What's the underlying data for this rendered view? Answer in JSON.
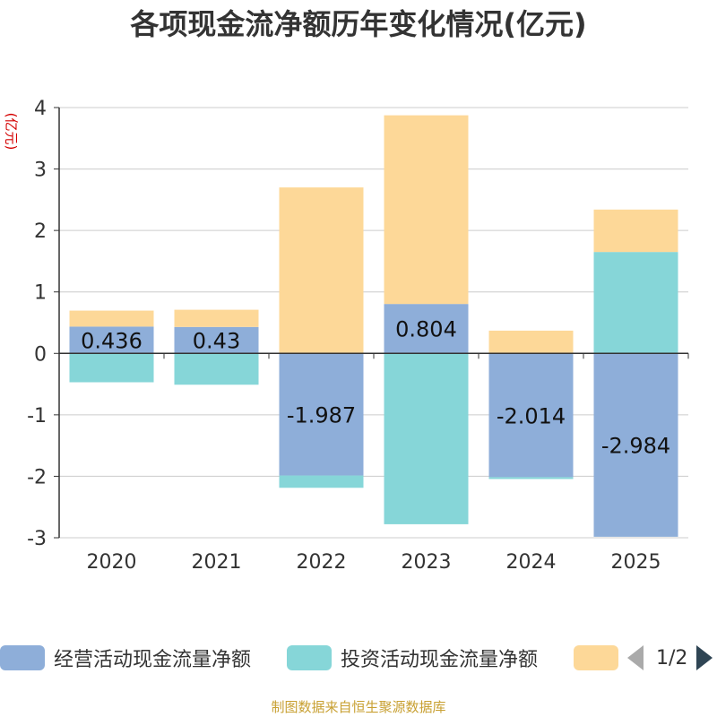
{
  "title": "各项现金流净额历年变化情况(亿元)",
  "unit_label": "(亿元)",
  "footer": "制图数据来自恒生聚源数据库",
  "pager": "1/2",
  "chart_data": {
    "type": "bar",
    "stacked": true,
    "title": "各项现金流净额历年变化情况(亿元)",
    "ylabel": "(亿元)",
    "xlabel": "",
    "categories": [
      "2020",
      "2021",
      "2022",
      "2023",
      "2024",
      "2025"
    ],
    "ylim": [
      -3,
      4
    ],
    "yticks": [
      4,
      3,
      2,
      1,
      0,
      -1,
      -2,
      -3
    ],
    "grid": true,
    "legend_position": "bottom",
    "series": [
      {
        "name": "经营活动现金流量净额",
        "color": "#8eaed9",
        "values": [
          0.436,
          0.43,
          -1.987,
          0.804,
          -2.014,
          -2.984
        ],
        "labels": [
          "0.436",
          "0.43",
          "-1.987",
          "0.804",
          "-2.014",
          "-2.984"
        ]
      },
      {
        "name": "投资活动现金流量净额",
        "color": "#86d6d8",
        "values": [
          -0.47,
          -0.51,
          -0.2,
          -2.78,
          -0.03,
          1.65
        ]
      },
      {
        "name": "",
        "color": "#fdd898",
        "values": [
          0.26,
          0.28,
          2.7,
          3.07,
          0.37,
          0.69
        ]
      }
    ]
  }
}
